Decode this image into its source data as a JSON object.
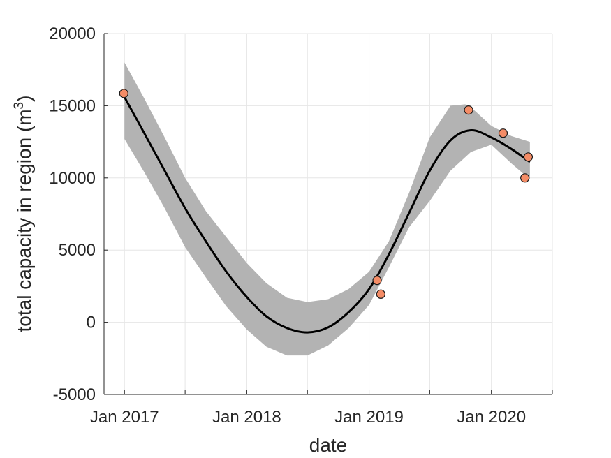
{
  "chart_data": {
    "type": "scatter",
    "xlabel": "date",
    "ylabel_text": "total capacity in region (m",
    "ylabel_superscript": "3",
    "ylabel_close": ")",
    "xlim": [
      "2016-11-01",
      "2020-07-01"
    ],
    "ylim": [
      -5000,
      20000
    ],
    "y_ticks": [
      -5000,
      0,
      5000,
      10000,
      15000,
      20000
    ],
    "y_tick_labels": [
      "-5000",
      "0",
      "5000",
      "10000",
      "15000",
      "20000"
    ],
    "x_ticks": [
      "2017-01-01",
      "2017-07-01",
      "2018-01-01",
      "2018-07-01",
      "2019-01-01",
      "2019-07-01",
      "2020-01-01",
      "2020-07-01"
    ],
    "x_tick_labels": [
      "Jan 2017",
      "",
      "Jan 2018",
      "",
      "Jan 2019",
      "",
      "Jan 2020",
      ""
    ],
    "grid": true,
    "colors": {
      "points": "#f48c66",
      "fit_line": "#000000",
      "confidence_band": "#b3b3b3",
      "grid": "#e6e6e6",
      "axes": "#262626"
    },
    "series": [
      {
        "type": "scatter",
        "points": [
          {
            "x": "2016-12-30",
            "y": 15850
          },
          {
            "x": "2019-01-25",
            "y": 2900
          },
          {
            "x": "2019-02-05",
            "y": 1950
          },
          {
            "x": "2019-10-25",
            "y": 14700
          },
          {
            "x": "2020-02-05",
            "y": 13100
          },
          {
            "x": "2020-04-10",
            "y": 10000
          },
          {
            "x": "2020-04-20",
            "y": 11450
          }
        ]
      },
      {
        "type": "line",
        "points": [
          {
            "x": "2017-01-01",
            "y": 15600
          },
          {
            "x": "2017-03-01",
            "y": 13100
          },
          {
            "x": "2017-05-01",
            "y": 10500
          },
          {
            "x": "2017-07-01",
            "y": 7900
          },
          {
            "x": "2017-09-01",
            "y": 5600
          },
          {
            "x": "2017-11-01",
            "y": 3500
          },
          {
            "x": "2018-01-01",
            "y": 1750
          },
          {
            "x": "2018-03-01",
            "y": 400
          },
          {
            "x": "2018-05-01",
            "y": -400
          },
          {
            "x": "2018-07-01",
            "y": -700
          },
          {
            "x": "2018-09-01",
            "y": -350
          },
          {
            "x": "2018-11-01",
            "y": 700
          },
          {
            "x": "2019-01-01",
            "y": 2300
          },
          {
            "x": "2019-03-01",
            "y": 4700
          },
          {
            "x": "2019-05-01",
            "y": 7600
          },
          {
            "x": "2019-07-01",
            "y": 10500
          },
          {
            "x": "2019-09-01",
            "y": 12600
          },
          {
            "x": "2019-11-01",
            "y": 13300
          },
          {
            "x": "2020-01-01",
            "y": 12800
          },
          {
            "x": "2020-03-01",
            "y": 12000
          },
          {
            "x": "2020-04-25",
            "y": 11100
          }
        ]
      },
      {
        "type": "area",
        "upper": [
          {
            "x": "2017-01-01",
            "y": 18000
          },
          {
            "x": "2017-03-01",
            "y": 15500
          },
          {
            "x": "2017-05-01",
            "y": 12800
          },
          {
            "x": "2017-07-01",
            "y": 10000
          },
          {
            "x": "2017-09-01",
            "y": 7700
          },
          {
            "x": "2017-11-01",
            "y": 5900
          },
          {
            "x": "2018-01-01",
            "y": 4100
          },
          {
            "x": "2018-03-01",
            "y": 2700
          },
          {
            "x": "2018-05-01",
            "y": 1700
          },
          {
            "x": "2018-07-01",
            "y": 1400
          },
          {
            "x": "2018-09-01",
            "y": 1600
          },
          {
            "x": "2018-11-01",
            "y": 2300
          },
          {
            "x": "2019-01-01",
            "y": 3500
          },
          {
            "x": "2019-03-01",
            "y": 5600
          },
          {
            "x": "2019-05-01",
            "y": 9000
          },
          {
            "x": "2019-07-01",
            "y": 12800
          },
          {
            "x": "2019-09-01",
            "y": 15000
          },
          {
            "x": "2019-10-15",
            "y": 15100
          },
          {
            "x": "2019-11-01",
            "y": 14900
          },
          {
            "x": "2020-01-01",
            "y": 13600
          },
          {
            "x": "2020-03-01",
            "y": 12900
          },
          {
            "x": "2020-04-25",
            "y": 12500
          }
        ],
        "lower": [
          {
            "x": "2017-01-01",
            "y": 12700
          },
          {
            "x": "2017-03-01",
            "y": 10400
          },
          {
            "x": "2017-05-01",
            "y": 7900
          },
          {
            "x": "2017-07-01",
            "y": 5200
          },
          {
            "x": "2017-09-01",
            "y": 3100
          },
          {
            "x": "2017-11-01",
            "y": 1100
          },
          {
            "x": "2018-01-01",
            "y": -500
          },
          {
            "x": "2018-03-01",
            "y": -1700
          },
          {
            "x": "2018-05-01",
            "y": -2300
          },
          {
            "x": "2018-07-01",
            "y": -2300
          },
          {
            "x": "2018-09-01",
            "y": -1600
          },
          {
            "x": "2018-11-01",
            "y": -400
          },
          {
            "x": "2019-01-01",
            "y": 1200
          },
          {
            "x": "2019-03-01",
            "y": 3800
          },
          {
            "x": "2019-05-01",
            "y": 6600
          },
          {
            "x": "2019-07-01",
            "y": 8400
          },
          {
            "x": "2019-09-01",
            "y": 10500
          },
          {
            "x": "2019-11-01",
            "y": 11800
          },
          {
            "x": "2020-01-01",
            "y": 12300
          },
          {
            "x": "2020-03-01",
            "y": 11000
          },
          {
            "x": "2020-04-25",
            "y": 9900
          }
        ]
      }
    ]
  }
}
